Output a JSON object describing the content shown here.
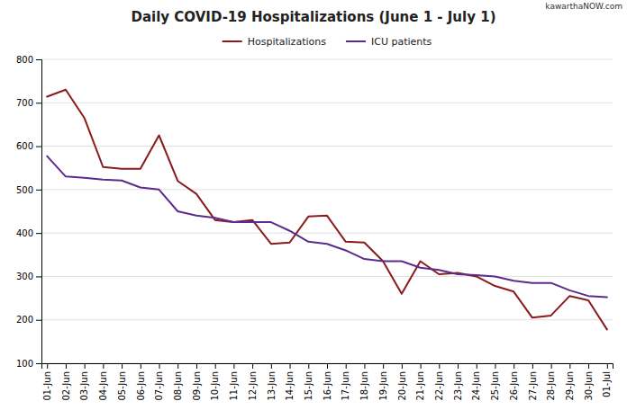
{
  "chart_data": {
    "type": "line",
    "title": "Daily COVID-19 Hospitalizations (June 1 - July 1)",
    "annotations": [
      "kawarthaNOW.com"
    ],
    "categories": [
      "01-Jun",
      "02-Jun",
      "03-Jun",
      "04-Jun",
      "05-Jun",
      "06-Jun",
      "07-Jun",
      "08-Jun",
      "09-Jun",
      "10-Jun",
      "11-Jun",
      "12-Jun",
      "13-Jun",
      "14-Jun",
      "15-Jun",
      "16-Jun",
      "17-Jun",
      "18-Jun",
      "19-Jun",
      "20-Jun",
      "21-Jun",
      "22-Jun",
      "23-Jun",
      "24-Jun",
      "25-Jun",
      "26-Jun",
      "27-Jun",
      "28-Jun",
      "29-Jun",
      "30-Jun",
      "01-Jul"
    ],
    "series": [
      {
        "name": "Hospitalizations",
        "color": "#8B1A1A",
        "values": [
          714,
          730,
          665,
          552,
          548,
          548,
          625,
          520,
          490,
          430,
          425,
          430,
          375,
          378,
          438,
          440,
          380,
          378,
          335,
          260,
          335,
          305,
          308,
          300,
          278,
          265,
          205,
          210,
          255,
          245,
          178
        ]
      },
      {
        "name": "ICU patients",
        "color": "#5B2C8D",
        "values": [
          577,
          530,
          527,
          523,
          521,
          505,
          500,
          450,
          440,
          435,
          425,
          425,
          425,
          405,
          380,
          375,
          360,
          340,
          335,
          335,
          320,
          315,
          305,
          303,
          300,
          290,
          285,
          285,
          268,
          255,
          252
        ]
      }
    ],
    "ylim": [
      100,
      800
    ],
    "yticks": [
      100,
      200,
      300,
      400,
      500,
      600,
      700,
      800
    ],
    "grid": true,
    "legend": "top"
  }
}
